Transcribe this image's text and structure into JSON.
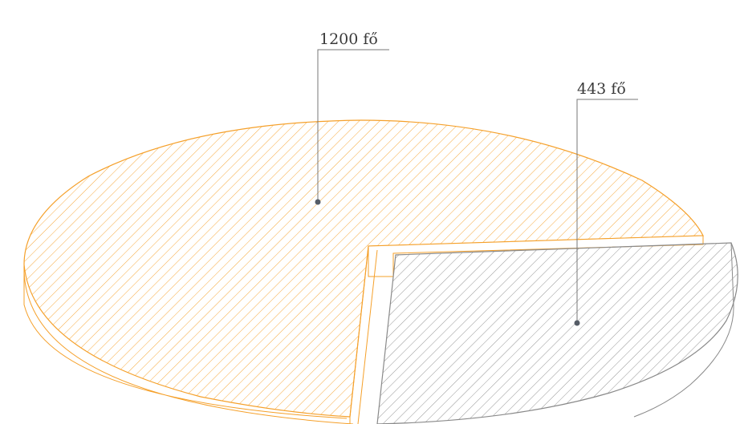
{
  "chart_data": {
    "type": "pie",
    "title": "",
    "slices": [
      {
        "label": "1200 fő",
        "value": 1200,
        "color": "#f5a02a"
      },
      {
        "label": "443 fő",
        "value": 443,
        "color": "#8a8a8a"
      }
    ],
    "legend": "none",
    "style": "3d-hatched-exploded"
  },
  "colors": {
    "leader": "#777777",
    "dot": "#555c66"
  }
}
